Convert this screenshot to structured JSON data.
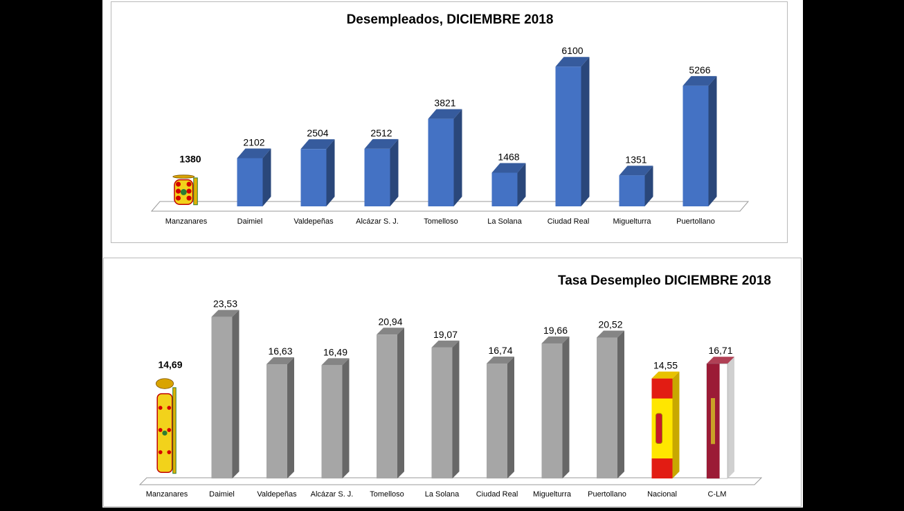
{
  "chart_data": [
    {
      "type": "bar",
      "title": "Desempleados, DICIEMBRE 2018",
      "categories": [
        "Manzanares",
        "Daimiel",
        "Valdepeñas",
        "Alcázar S. J.",
        "Tomelloso",
        "La Solana",
        "Ciudad Real",
        "Miguelturra",
        "Puertollano"
      ],
      "values": [
        1380,
        2102,
        2504,
        2512,
        3821,
        1468,
        6100,
        1351,
        5266
      ],
      "value_labels": [
        "1380",
        "2102",
        "2504",
        "2512",
        "3821",
        "1468",
        "6100",
        "1351",
        "5266"
      ],
      "highlight_index": 0,
      "highlight_style": "coat-of-arms",
      "bar_color": "#4472c4",
      "ylim": [
        0,
        6500
      ],
      "grid": false,
      "legend": "none",
      "style": "3d"
    },
    {
      "type": "bar",
      "title": "Tasa Desempleo DICIEMBRE 2018",
      "categories": [
        "Manzanares",
        "Daimiel",
        "Valdepeñas",
        "Alcázar S. J.",
        "Tomelloso",
        "La Solana",
        "Ciudad Real",
        "Miguelturra",
        "Puertollano",
        "Nacional",
        "C-LM"
      ],
      "values": [
        14.69,
        23.53,
        16.63,
        16.49,
        20.94,
        19.07,
        16.74,
        19.66,
        20.52,
        14.55,
        16.71
      ],
      "value_labels": [
        "14,69",
        "23,53",
        "16,63",
        "16,49",
        "20,94",
        "19,07",
        "16,74",
        "19,66",
        "20,52",
        "14,55",
        "16,71"
      ],
      "highlight_index": 0,
      "highlight_style": "coat-of-arms",
      "flag_bars": {
        "9": "spain-flag",
        "10": "castilla-la-mancha-flag"
      },
      "bar_color": "#a6a6a6",
      "ylim": [
        0,
        25
      ],
      "grid": false,
      "legend": "none",
      "style": "3d"
    }
  ]
}
